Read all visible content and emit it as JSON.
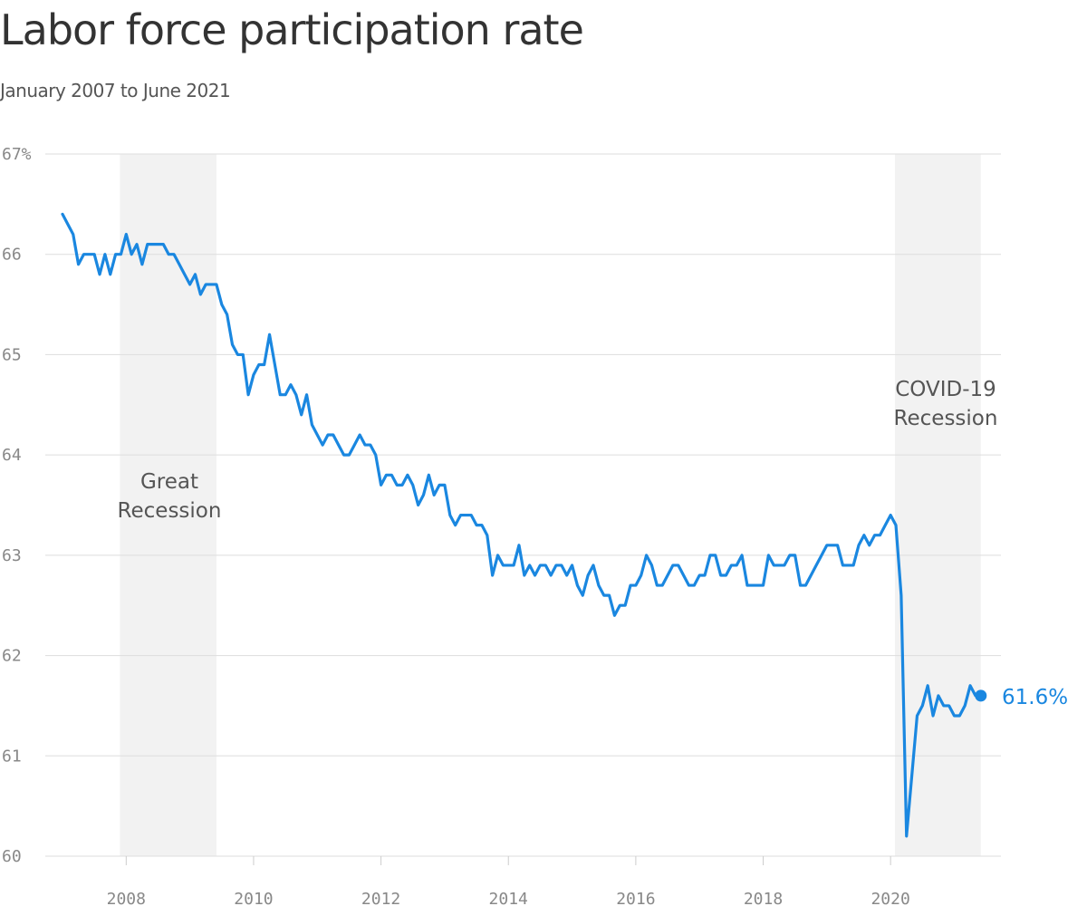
{
  "title": "Labor force participation rate",
  "subtitle": "January 2007 to June 2021",
  "chart_data": {
    "type": "line",
    "title": "Labor force participation rate",
    "subtitle": "January 2007 to June 2021",
    "xlabel": "",
    "ylabel": "",
    "x_range": [
      "2007-01",
      "2021-06"
    ],
    "ylim": [
      60,
      67
    ],
    "grid": true,
    "y_ticks": [
      {
        "value": 67,
        "label": "67%"
      },
      {
        "value": 66,
        "label": "66"
      },
      {
        "value": 65,
        "label": "65"
      },
      {
        "value": 64,
        "label": "64"
      },
      {
        "value": 63,
        "label": "63"
      },
      {
        "value": 62,
        "label": "62"
      },
      {
        "value": 61,
        "label": "61"
      },
      {
        "value": 60,
        "label": "60"
      }
    ],
    "x_ticks": [
      {
        "date": "2008-01",
        "label": "2008"
      },
      {
        "date": "2010-01",
        "label": "2010"
      },
      {
        "date": "2012-01",
        "label": "2012"
      },
      {
        "date": "2014-01",
        "label": "2014"
      },
      {
        "date": "2016-01",
        "label": "2016"
      },
      {
        "date": "2018-01",
        "label": "2018"
      },
      {
        "date": "2020-01",
        "label": "2020"
      }
    ],
    "recessions": [
      {
        "name": "great-recession",
        "label_lines": [
          "Great",
          "Recession"
        ],
        "start": "2007-12",
        "end": "2009-06"
      },
      {
        "name": "covid-recession",
        "label_lines": [
          "COVID-19",
          "Recession"
        ],
        "start": "2020-02",
        "end": "2021-06"
      }
    ],
    "series": [
      {
        "color": "#1a87e0",
        "start": "2007-01",
        "values": [
          66.4,
          66.3,
          66.2,
          65.9,
          66.0,
          66.0,
          66.0,
          65.8,
          66.0,
          65.8,
          66.0,
          66.0,
          66.2,
          66.0,
          66.1,
          65.9,
          66.1,
          66.1,
          66.1,
          66.1,
          66.0,
          66.0,
          65.9,
          65.8,
          65.7,
          65.8,
          65.6,
          65.7,
          65.7,
          65.7,
          65.5,
          65.4,
          65.1,
          65.0,
          65.0,
          64.6,
          64.8,
          64.9,
          64.9,
          65.2,
          64.9,
          64.6,
          64.6,
          64.7,
          64.6,
          64.4,
          64.6,
          64.3,
          64.2,
          64.1,
          64.2,
          64.2,
          64.1,
          64.0,
          64.0,
          64.1,
          64.2,
          64.1,
          64.1,
          64.0,
          63.7,
          63.8,
          63.8,
          63.7,
          63.7,
          63.8,
          63.7,
          63.5,
          63.6,
          63.8,
          63.6,
          63.7,
          63.7,
          63.4,
          63.3,
          63.4,
          63.4,
          63.4,
          63.3,
          63.3,
          63.2,
          62.8,
          63.0,
          62.9,
          62.9,
          62.9,
          63.1,
          62.8,
          62.9,
          62.8,
          62.9,
          62.9,
          62.8,
          62.9,
          62.9,
          62.8,
          62.9,
          62.7,
          62.6,
          62.8,
          62.9,
          62.7,
          62.6,
          62.6,
          62.4,
          62.5,
          62.5,
          62.7,
          62.7,
          62.8,
          63.0,
          62.9,
          62.7,
          62.7,
          62.8,
          62.9,
          62.9,
          62.8,
          62.7,
          62.7,
          62.8,
          62.8,
          63.0,
          63.0,
          62.8,
          62.8,
          62.9,
          62.9,
          63.0,
          62.7,
          62.7,
          62.7,
          62.7,
          63.0,
          62.9,
          62.9,
          62.9,
          63.0,
          63.0,
          62.7,
          62.7,
          62.8,
          62.9,
          63.0,
          63.1,
          63.1,
          63.1,
          62.9,
          62.9,
          62.9,
          63.1,
          63.2,
          63.1,
          63.2,
          63.2,
          63.3,
          63.4,
          63.3,
          62.6,
          60.2,
          60.8,
          61.4,
          61.5,
          61.7,
          61.4,
          61.6,
          61.5,
          61.5,
          61.4,
          61.4,
          61.5,
          61.7,
          61.6,
          61.6
        ]
      }
    ],
    "last_value_label": "61.6%"
  }
}
